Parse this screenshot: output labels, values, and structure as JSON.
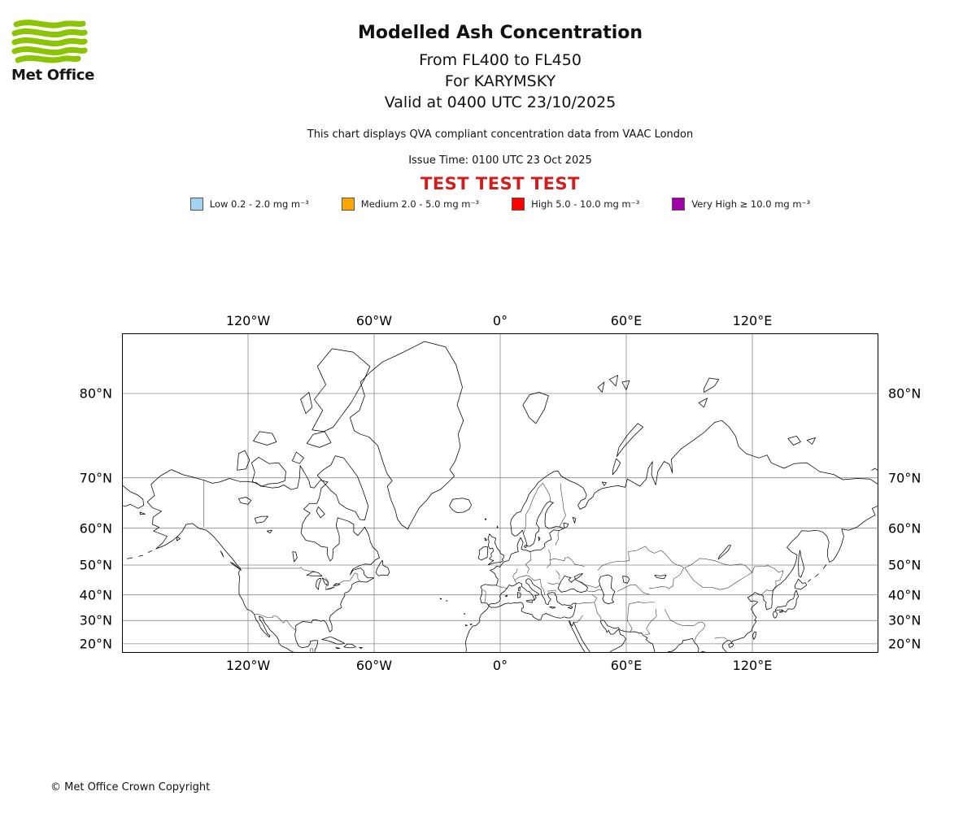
{
  "header": {
    "logo_text": "Met Office",
    "title": "Modelled Ash Concentration",
    "subtitle1": "From FL400 to FL450",
    "subtitle2": "For KARYMSKY",
    "subtitle3": "Valid at 0400 UTC 23/10/2025",
    "description": "This chart displays QVA compliant concentration data from VAAC London",
    "issue_time": "Issue Time: 0100 UTC 23 Oct 2025",
    "test_banner": "TEST TEST TEST"
  },
  "legend": {
    "items": [
      {
        "key": "low",
        "label": "Low 0.2 - 2.0 mg m⁻³",
        "color": "#a2d4f2"
      },
      {
        "key": "medium",
        "label": "Medium 2.0 - 5.0 mg m⁻³",
        "color": "#ffa500"
      },
      {
        "key": "high",
        "label": "High 5.0 - 10.0 mg m⁻³",
        "color": "#ff0000"
      },
      {
        "key": "very-high",
        "label": "Very High ≥ 10.0 mg m⁻³",
        "color": "#a000a8"
      }
    ]
  },
  "map": {
    "lon_range": [
      -180,
      180
    ],
    "lat_range": [
      15.6,
      84.2
    ],
    "lon_ticks": [
      {
        "label": "120°W",
        "lon": -120
      },
      {
        "label": "60°W",
        "lon": -60
      },
      {
        "label": "0°",
        "lon": 0
      },
      {
        "label": "60°E",
        "lon": 60
      },
      {
        "label": "120°E",
        "lon": 120
      }
    ],
    "lat_ticks": [
      {
        "label": "80°N",
        "lat": 80
      },
      {
        "label": "70°N",
        "lat": 70
      },
      {
        "label": "60°N",
        "lat": 60
      },
      {
        "label": "50°N",
        "lat": 50
      },
      {
        "label": "40°N",
        "lat": 40
      },
      {
        "label": "30°N",
        "lat": 30
      },
      {
        "label": "20°N",
        "lat": 20
      }
    ],
    "coastlines": [
      "-88.3,15.6 -88.2,17.4 -87.4,18.5 -87,20.2 -86.8,21.4 -88.5,21.5 -90.3,21.2 -90.6,19.8 -91.5,18.7 -94.4,18.2 -96,19.1 -97.2,21.6 -97.7,24 -97.2,26 -97.3,27.8 -96.3,28.5 -94,29.6 -91.5,29.4 -89.8,29.1 -89.2,30.3 -87.5,30.3 -85.3,29.7 -84,30.1 -82.7,28.9 -81.8,26.7 -81.1,25.2 -80.1,26 -80.1,28 -80.7,29.5 -81.3,30.6 -80.8,32 -79.2,33.1 -77.8,34.2 -75.5,35.2 -76,36.5 -75.3,38 -74,39.6 -74,40.7 -72.3,41.1 -70.9,42.3 -70.5,43.7 -68.8,44.4 -66.9,44.8 -65.8,44.6 -63.5,44.5 -60.1,45.9 -63.2,45.9 -64.8,47.1 -65,48.2 -66.5,49.1 -70,48.4 -71.5,46.9 -70.2,48.7 -67,49.8 -64.5,50.3 -61.5,50.2 -59.5,51.5 -57.5,52.2 -58.5,54 -60.5,55.1 -61.7,56.4 -62.5,58.3 -64.5,60.3 -65.3,59.7 -67.8,58.2 -69.7,59.1 -69.7,60.9 -72.2,61.6 -77.3,62.4 -78.1,60.7 -76.6,58.2 -76.6,56.1 -79.5,54.7 -79.8,52 -80.9,51.2 -82.2,52.9 -82.3,55.1 -85.1,55.3 -88.2,56.5 -92.5,57 -94.8,58.8 -94.1,61 -92.5,62.4 -90.5,63.4 -93.5,64.2 -90.8,65.4 -87.2,65.4 -86.1,66.5 -85.2,68.2 -82,69.3 -85.6,69.6 -88.5,68.3 -90.3,68.4 -91,69.5 -93.5,71 -95.2,71.9 -95.5,70 -96.5,68.3 -99.5,68 -103,68.8 -105.5,68.4 -108.5,68.3 -111.5,68.5 -114,68.6 -116,69.2 -120.5,69.4 -124,69.4 -128.9,69.9 -133.5,69.3 -137,69.1 -141,69.6 -146,70.1 -151,70.5 -156.5,71.3 -161.8,70.3 -166.2,68.9 -164.5,66.9 -168,65.7 -165.4,64.5 -161.2,63.8 -165.2,62.5 -165.5,60.9 -162.3,60.2 -165,59.3 -161.8,58.7 -158.5,58 -160.5,56.4 -163.8,54.7 -159.8,55.6 -156,56.9 -153.5,58 -151.4,59.2 -149.4,60.9 -146.4,61.1 -143.5,60 -139.8,59.5 -136.5,58 -133.8,56.3 -131.5,54.7 -129.5,53.3 -127.3,51.8 -125.2,50 -123.5,48.9 -124.6,47.5 -124,46.2 -124.3,43.4 -124.3,40.3 -122.4,37.8 -121.9,36.6 -120.6,34.6 -118.4,33.8 -117.1,32.6 -116.2,30.4 -114.9,28.8 -114,26.9 -112.1,24.8 -109.9,22.9 -109.6,23.6 -110.7,24.4 -111.8,26.5 -113,28.7 -114.5,30.6 -114.7,31.8 -113.1,31.1 -112.2,29.2 -110.6,27.5 -109.3,25.8 -108,24.8 -106.4,23.2 -105.3,21.4 -105.4,20.4 -104.3,19.1 -101.5,17.9 -100,16.9 -97.7,15.9 -95.5,15.7 -94.2,15.6",
      "-59.2,47.6 -58.5,49 -57,50.7 -56,51.4 -55.8,49.9 -54.5,49.5 -53.5,49.2 -52.7,47.7 -53.6,46.7 -55.9,46.9 -57.9,46.6 -59.2,47.6",
      "-84.9,21.9 -83,22.5 -80.8,23.1 -78.6,22.3 -75.7,21 -74.1,20.2 -75.5,19.9 -77.7,19.9 -80,20.7 -82.5,21.5 -84.9,21.9",
      "-74.4,18.6 -72.7,19.9 -70.6,19.8 -68.7,18.6 -70.2,18.2 -72.1,18.2 -74.4,18.6",
      "-78.3,18.3 -76.3,18 -77.3,17.8 -78.3,18.3",
      "-67.2,18.4 -65.6,18.3 -66.2,17.9 -67.2,18.4",
      "-64.5,61.9 -66.8,62 -68.9,63.7 -73.2,64.4 -76.6,65.4 -78,67 -80.8,67.9 -84.6,69.5 -87,70.4 -84.5,71.2 -80.5,72 -78.5,73.3 -74.5,73 -71,71.6 -67.9,70.2 -65.2,67.7 -62.8,64.8 -64.5,61.9",
      "-118,69.4 -113.5,68.6 -110,69 -106,69.1 -102.5,69.5 -102,71 -105.5,72.3 -110,72.2 -115,73.1 -118.3,72.3 -116.8,70.9 -118,69.4",
      "-125.2,71.2 -121,71.4 -119.3,72.7 -121.5,74 -124.5,73.6 -125.2,71.2",
      "-89.5,76.5 -84,76.3 -79.5,76.8 -75.5,78 -71,79.2 -65,81 -62,82 -70,82.9 -80,83.1 -87,82 -83,80.7 -88.5,79.5 -84.5,78.5 -89.5,76.5",
      "-92,74.9 -86,74.4 -80.5,75 -83.5,76.3 -89,76 -92,74.9",
      "-117.5,75.2 -111,74.7 -106.5,75.1 -108.5,76.1 -114.5,76.3 -117.5,75.2",
      "-99,72.6 -95.5,72.2 -93.5,73 -97,73.8 -99,72.6",
      "-92.5,78.2 -89.5,78.8 -91,80.1 -95,79.5 -92.5,78.2",
      "-86.5,64.7 -83.5,63.2 -85.5,62.4 -87.5,63.8 -86.5,64.7",
      "-43.9,59.8 -46.8,60.7 -48.9,62.1 -50.1,64.2 -52.1,66.2 -53.7,68.6 -51.4,69.5 -53.9,70.7 -55.8,72.4 -58.2,74.6 -62.5,75.7 -66.5,76 -69.5,76.4 -71.5,77.8 -67,78.5 -64.5,79.8 -66.5,80.9 -62,81.6 -56,82.3 -46,82.9 -36,83.5 -26,83.2 -21,82.1 -18,80.5 -20.5,79 -17.5,77.5 -20,76 -19,74.5 -21.5,72.5 -24,71.3 -21.8,70.3 -25.5,69 -28.5,68 -32.5,67.3 -35,66 -38.5,64.5 -41,62.5 -43,60.8 -43.9,59.8",
      "-22.6,66.2 -18,66.4 -15,66.1 -13.7,65.1 -14.8,64.2 -17.5,63.6 -20.5,63.5 -22.5,64 -24.2,64.9 -22.6,66.2",
      "10.8,79 14,79.9 18.5,80.1 23,79.8 21,78.6 17,77.2 13.8,77.8 10.8,79",
      "46.5,80.5 49.5,80.9 48.5,80.1 46.5,80.5",
      "52,81.1 56,81.4 55,80.6 52,81.1",
      "58,80.9 61.5,81 60,80.3 58,80.9",
      "53.5,70.5 55.5,71.3 57.2,72.3 55.2,72.9 53.8,71.5 53.5,70.5",
      "55.5,73.2 59,74.5 64,75.9 68,76.8 65.5,77.2 60.5,75.9 56.5,74.4 55.5,73.2",
      "94.5,79.2 98.5,79.6 97,78.8 94.5,79.2",
      "97,80.1 102,80.6 104,81.1 99.5,81.2 97,80.4 97,80.1",
      "137,75.5 141,75.8 143,75.1 139.5,74.7 137,75.5",
      "146,75.3 150,75.6 148.5,74.8 146,75.3",
      "176.8,71.2 178.5,71.5 179.9,71.1",
      "-5.6,36.1 -6.3,36.9 -8.9,37 -9.5,38.7 -8.8,40.2 -8.7,41.9 -9.3,43 -7.3,43.7 -4.5,43.4 -1.8,43.4 -1.2,44.7 -1.1,45.6 -2.1,46.3 -2.5,47.3 -4.8,48.4 -3,48.8 -1.6,49.7 -0.2,49.4 0.2,49.7 1.6,50.9 2.6,51.1 4.1,51.4 5.3,53.3 7.2,53.7 8.6,53.9 8.1,55.6 8.6,56.5 9.7,57.7 10.9,56.4 10,54.7 11.1,54.4 12.6,54.3 14.3,53.9 16.4,54.3 18.8,54.4 19.6,54.5 21.2,55.3 21.1,56.1 22.6,56.8 24.4,57.2 23.5,58.8 25.5,59.6 28,59.4 30.2,59.9 28.5,60.3 26.5,60.4 23.2,59.9 21.4,60.5 21.3,61.5 21.5,63.2 22.5,64.2 24.5,65.3 25.3,65.5 23.5,65.8 22.3,65.5 21,64.8 19.5,63.6 17.9,62.3 17.2,61 18.6,60.1 18.4,59.3 17,58.7 16.6,57.3 16,56.2 14.2,55.4 12.9,55.4 12.5,56.3 11.9,57.4 11.2,58.4 10.6,59.5 9.6,59 8,58.2 6.8,58.1 5.5,58.7 5.3,59.7 4.9,61.2 5.3,62 6.3,62.7 8,63.5 9.8,63.7 11,64.9 12.5,65.9 13.5,67 15,67.8 16.5,68.4 18,69.2 20.5,69.9 23,70.5 25.5,71 27.5,71.1 29,70.3 31,69.9 33.1,69.5 36,69.1 39.5,68.3 41.1,67 40.4,66.3 38.5,66 37,65 38,64.2 40.5,64.7 42,66 44.2,66.7 44.8,67.3 46.5,67.8 48.5,68.2 52.5,68.5 56,68.7 59.5,68.4 60.5,69.8 66.5,68.6 69.5,69.8 70.5,71.5 72.5,72.5 72,70.5 74,68.8 75,71 78,72.5 80.5,72.1 82,70.8 81.5,72.8 86,74.2 93,75.5 97,76.2 102,77.3 105.5,77.5 109,76.8 112,75.8 113.5,74.5 117,73.6 123,73 127,73.4 129,72.3 135,71.5 140,72.2 146,72.3 152,71 159,70.5 163,69.7 170,69.9 176,69.8 179.9,68.9",
      "-180,68.8 -176,67.6 -172.5,67 -170,66.2 -169.7,65 -172.3,64.4 -176,65.2 -178.5,64.8 -180,65",
      "179.9,64.9 177,64.4 178.5,63 174,61.8 170,60.3 166,59.5 162.5,59.8 163.5,58 162.5,56 161.5,54.5 160,52.8 158.5,51.5 156.7,50.9 155.8,52.5 155.9,54.5 156.5,56.5 155.5,58 153.5,59.1 150.5,59.5 147,59.3 143.5,59.4 141.5,58 138.5,56.5 136.5,55.1 138.8,53.8 141.3,53 140.8,51 139.5,49 138,47.5 135.5,45.3 133.5,44 131.9,43.2 130.6,42.3 129.8,41.5 129.6,40.1 129.3,38.5 129.4,36.9 129.1,35.1 126.8,34.4 126.3,35.8 126.6,37.2 125.4,38 125.3,39.5 124.4,39.9 122.2,40.5 121.2,40.9 120.3,40.1 117.8,39 119.2,37.6 120.9,37.8 122.6,37.4 121.9,36.8 119.8,35.4 119.5,34.5 120.5,33 121.2,32 121.9,31.3 121.1,30.2 121.9,29.7 120.2,27.3 119.6,25.7 117.5,24.4 116,22.8 114.3,22.4 113.6,22.1 111.9,21.6 110.5,21.2 110.2,20.3 109.6,21.4 108.3,21.5 106.8,20.6 105.9,19.6 105.7,18.6 106.5,17.4 107.7,16.3 108.5,15.6",
      "142.7,54.3 143.2,52.5 144.7,49 143.1,46.1 142.1,46.6 141.9,50 142.1,52.5 142.7,54.3",
      "141.9,45.5 143.8,44.1 145.3,44.3 145.8,43.4 143.2,42 140.4,42.3 140.3,43.3 141.9,45.5",
      "140.9,41.6 141.5,40.5 141.9,39.3 141,38.3 140.9,36.9 140.6,35.9 139.8,34.9 138.9,34.6 137,34.7 135.9,33.4 135,33.7 133.9,34.4 132.2,34.2 131,34 130.9,34.4 132,35.4 133.5,35.5 136,35.9 136.8,37.3 138.2,38.2 139.5,38.5 140,39.6 140.1,40.6 140.9,41.6",
      "130.4,33.7 131.1,33.6 131.9,32.8 131.4,31.4 130.7,31 130.2,31.4 129.8,32.8 130.4,33.7",
      "132.8,33.4 134.6,34.1 134.3,33.4 132.8,33.4",
      "121.8,25.1 121,25.3 120.1,23.6 120.7,21.9 121.5,23.2 121.8,25.1",
      "108.7,19.5 109.3,20.1 110.7,20.1 111,19.6 110.4,18.7 109.2,18.3 108.7,19.5",
      "155.2,50.1 153.8,48.9",
      "151.5,47.2 150,46.3",
      "147.8,45.4 146.5,44.6",
      "-165.8,54.2 -167.5,53.7",
      "-170,52.9 -172,52.6",
      "-175,52.2 -177.5,51.9",
      "-153.8,57.9 -152.3,57.4 -153.9,56.9 -153.8,57.9",
      "-171.5,63.6 -168.9,63.2 -171.3,63.1 -171.5,63.6",
      "-128.4,50.8 -126,49.6 -123.3,48.4 -124.8,49.3 -127,50.5 -128.4,50.8",
      "-133.1,54.1 -131.7,52.4 -132.3,53.4 -133.1,54.1",
      "-5.7,50.1 -4.5,50.3 -3.6,50.5 -2.5,50.7 -0.8,50.8 0.3,50.9 1.4,51.3 0.8,51.7 1.6,52.1 1.7,52.9 0.2,53.4 -0.2,54.1 -1.4,54.8 -2.1,55.8 -2.6,56.3 -2.1,57.5 -3.9,57.9 -5.1,58.6 -5.8,57.4 -5.3,56.7 -5.7,55.5 -4.9,54.7 -3.6,54.9 -3.2,54.1 -4.4,53.3 -4.1,52.6 -5.2,51.9 -4.2,51.5 -3.1,51.4 -4,51 -5.7,50.1",
      "-6.1,55.3 -8,55.2 -10,54.3 -9.9,53.2 -10.4,52 -9,51.5 -7.5,51.9 -6.2,52.3 -6,53.5 -5.9,54.2 -6.1,55.3",
      "-7.2,62.2 -6.6,62.1 -7,61.9 -7.2,62.2",
      "-1.4,60.5 -1.1,60.2 -1.5,60.1 -1.4,60.5",
      "-7.4,57.6 -6.3,57.1 -7.1,56.9 -7.4,57.6",
      "11.8,55.7 12.6,55.6 12.2,55 11.4,55.3 11.8,55.7",
      "18.2,57.9 19,57.4 18.4,56.9 18.2,57.9",
      "-5.6,36.1 -4.4,36.7 -2.1,36.8 -0.3,37.6 0.2,38.8 -0.3,39.5 0.7,40.6 2.2,41.4 3.2,42.3 4.2,43.5 5.8,43.1 7.5,43.7 8.9,44.4 10.2,43.9 10.3,42.9 11.8,42.1 12.7,41.4 13.9,41.2 14.3,40.8 15.3,40 15.9,39 16.1,38.4 15.7,38 16.1,37.9 16.6,38.4 17.1,39 16.5,39.8 18,39.9 18.4,40.3 17.3,40.9 16,41.5 15.2,41.9 14.5,42.4 13.6,43.6 12.4,44.2 12.3,45.1 13.1,45.6 13.8,45.6 14.9,44.9 15.5,43.9 16.5,43.3 17.5,42.9 18.5,42.4 19.4,41.9 19.5,40.9 19.9,39.8 20.8,38.9 21.1,38.3 21.5,37.5 21.7,36.8 22.4,36.4 23,36.5 23.2,37.5 23.7,37.9 24.1,38.4 23.3,38.9 23,39.4 22.6,40.2 22.9,40.6 23.7,40.7 24.5,40.9 26,40.7 26.2,40.1",
      "29.1,41 31.3,41.3 33.4,42 35.2,42.1 36.5,41.3 38.5,40.9 41,41.4 41.6,42.6 40.2,43.6 38.8,44.4 37.4,44.7 36.6,45.1 35.4,45.4 33.8,44.4 32.5,45.3 33.7,46 32,46.2 31.6,46.3 30.7,46.6 29.7,45.5 28.8,44.7 28.1,43.4 27.5,42.3 28.3,41.6 29.1,41",
      "35.3,46.3 36.3,46.6 37.6,47.1 39.3,47.3 38.2,46.6 36.9,45.9 35.9,45.5 35.3,46.3",
      "26.2,39.9 26.9,39.3 26.8,38.3 27.3,37.4 28.3,36.8 29.5,36.2 30.5,36.3 32,36.1 33.9,36.2 34.6,36.8 36,36.9 35.9,36 35.6,34.8 35.2,33.3 34.6,31.9 33.4,31.1 31.9,31.1 30.4,31.5 28.8,31 27,31.2 25.2,31.7 23.1,32.4 21.7,32.9 20.1,32.2 19.3,30.4 17.9,30.4 15.8,31.4 15.2,32.4 13.1,32.9 11.5,33.2 10.1,33.8 10.2,34.8 11.1,35.2 10.8,36.5 10.3,37.1 9.2,37.2 8,36.9 6.5,37.1 5.3,36.8 3.8,36.9 2.1,36.6 0,35.8 -1.5,35.3 -2.9,35.3 -4.3,35.2 -5.3,35.9 -6,34.8 -7.5,33.6 -9.2,32.3 -9.8,31 -9.7,29.5 -10.5,28.8 -11.5,28 -13,27.7 -14.5,26 -15.2,24.5 -16,22.5 -16.5,20.8 -16.3,19 -16.1,17.2 -16.4,15.9 -16.4,15.6",
      "8.2,40.9 9.7,40.6 9.6,39.2 8.4,38.9 8.2,40.9",
      "8.6,42.3 9.5,42.9 9.3,41.4 8.7,41.5 8.6,42.3",
      "12.4,37.8 15.1,38.2 15.3,37.1 12.9,37.5 12.4,37.8",
      "23.5,35.5 26.3,35.3 25,34.9 23.5,35.5",
      "32.3,35.2 34.5,35.6 33.9,34.7 32.3,35.2",
      "2.4,39.6 3.4,39.8 3,39.3 2.4,39.6",
      "-16.6,28.2 -15.6,28 -16.4,27.8 -16.6,28.2",
      "-14.3,28.4 -13.5,28.6 -13.9,28.2 -14.3,28.4",
      "-17.2,32.9 -16.7,32.7 -17.1,32.6 -17.2,32.9",
      "-28.6,38.7 -27.9,38.6 -28.4,38.4 -28.6,38.7",
      "-25.7,37.9 -25.1,37.8 -25.6,37.7 -25.7,37.9",
      "32.6,29.9 33.6,27.8 35.6,24.3 37.3,21 39.2,17.8 40.8,15.6",
      "33.1,29.9 33.7,28.3 34.3,27.8 34.7,28.5 34.9,29.4",
      "34.9,29.4 35.8,27.5 37.5,24.5 39,21.5 41.1,18.5 42.8,16.2 43.2,15.6",
      "51.5,15.6 53,16.8 55.3,17.9 57.8,19.1 58.8,20.5 59.8,22.2 58.6,23.6 57.2,24.1 56.4,26.4 55.2,25.4 54,24.3 52.5,24.2 51.6,25.9 50.8,25 50.2,26.4 49,27.5 48,29 47.7,29.9 48.8,30.2 49.6,29.8 51,27.9 52.6,27.3 54.5,26.7 56.2,27.1 57.3,25.9 59.5,25.4 61.6,25.2 64.1,25.3 66.5,24.6 67.2,24.8 68.2,23.6 70.1,22.6 69.4,21.9 70.9,20.7 72.6,19.9 72.9,18.8 73.5,16.4 73.8,15.6",
      "80.3,15.6 80.1,16.6 81.3,16.3 82.4,17 83.6,17.8 85.1,19.5 86.6,20.2 87.1,21.7 88.2,21.6 89.6,21.9 91.5,22.4 92.3,20.8 93.6,19.5 94.5,17.8 94.2,16.2 95.2,15.9 96.3,16.6 97.3,16.3 97.7,15.6",
      "49.2,46.6 51.5,46.9 53.2,46.2 53,44.5 52.8,42.5 54.5,41.2 53.8,39.8 53.2,38.2 54,37.3 51.5,36.6 49.5,37.3 48.7,38.5 49.4,40 48.5,41.7 47.5,43.5 47,45 47.8,46.3 49.2,46.6",
      "58.3,46.5 60.5,46.3 61.5,45.5 60.5,44.1 58.7,44.5 58.3,46.5",
      "73.5,46.8 76,46.6 79,46.8 78,45.6 74.5,46 73.5,46.8",
      "103.8,51.7 106,52.9 108.5,54.2 109.8,55.6 108.8,55.7 106.3,54 104.3,52.6 103.8,51.7",
      "30.2,61.2 32.4,61 32,60.4 30.5,60 30.2,61.2",
      "34.5,62.5 35.9,62.2 35.4,61.2 34.5,62.5",
      "-92.1,46.8 -89.5,46.6 -87,46.6 -84.8,46.5 -86.5,47.6 -89.2,47.9 -92.1,46.8",
      "-87.8,43 -87.3,45 -86,45.8 -85.2,45.7 -86.3,43.7 -86.5,41.9 -87.8,43",
      "-84.7,45.9 -82.6,45 -81.7,44.5 -82,43.3 -83.4,43.9 -84.7,45.9",
      "-83.2,41.9 -81.2,42.3 -78.9,42.8 -80.8,42.2 -83.2,41.9",
      "-79.4,43.3 -77.6,43.3 -76.2,43.7 -78.1,44 -79.4,43.3",
      "-98.8,53.9 -97.3,53.8 -96.6,52.2 -98.1,51 -98.8,53.9",
      "-124.5,66.3 -121,66.6 -118.5,66 -120,65.2 -123.5,65.5 -124.5,66.3",
      "-116.8,62.3 -113.5,62.7 -110.5,62.7 -112.5,61.5 -116,61.2 -116.8,62.3",
      "-111,59.3 -108.6,59.5 -109.6,58.8 -111,59.3",
      "48.5,69.3 50.5,69.2 49.5,68.7 48.5,69.3"
    ],
    "borders": [
      "-141,69.6 -141,60.3",
      "-123,49 -95.2,49 -94.8,49.3 -93.8,48.6 -92.3,48.3 -89.5,48 -88.4,48.2",
      "-83.2,46 -82.4,45.3 -82.4,43.9 -82.9,42.9 -83.1,42.3",
      "-79.2,43.4 -76.4,44.1 -75,44.8 -71.5,45 -69.2,47.5 -67.8,47.1 -67.8,45.7 -66.9,44.8",
      "-117.1,32.6 -114.8,32.5 -111,31.3 -108.2,31.3 -108.2,31.8 -106.5,31.8 -104.9,30.6 -103.1,29 -102.4,29.9 -101.4,29.8 -99.5,27.5 -97.2,25.9",
      "-92.2,15.6 -92.2,16.1 -90.4,16.1 -90.4,17.8 -89.1,17.8 -89.1,15.7",
      "11.4,59 12.3,61 12.1,63 14,64.5 15.5,66.2 18,68.2 20.2,69.1",
      "24,65.8 23.5,67 22,68.1 20.5,69 20.2,69.1",
      "28.2,60.4 29.8,61.8 31.2,62.9 30.2,64.2 29.8,65.7 29,67.7 28.9,69.1",
      "28,59.4 27.4,58.3 27.8,57.3 26.5,56.2 26.6,55.7",
      "14.3,53.9 14.7,51.6 12.1,50.2 13.8,48.8 12.9,47.5",
      "8.2,48.9 7.6,47.6 6.8,47.3 6,46.4 7,45.1 7.7,44.1",
      "-1.8,43.3 0.7,42.7 3.2,42.4",
      "-8.2,41.9 -6.9,41.1 -7,38.8 -7.4,37.2",
      "22.9,54.4 23.5,53.9 23.9,52.8 23.6,51.5 24,50.4 22.2,49.2",
      "23.6,51.5 25.8,51.9 28.1,51.6 30.6,51.3 30.8,52.1",
      "30.8,52.1 32.5,52.3 34.4,51.3 35.3,50.3 38,49.9 40.1,49.6",
      "26.6,48.3 28.2,46.9 28.2,45.5",
      "22.7,44.2 25,43.7 27.3,44.1 28.4,43.7",
      "7,45.1 8.5,46 10,46.3 12.5,46.7 13.7,46.5",
      "13.7,46.5 15.2,45.6 16.3,45 19,45.5 19.3,44.3 19.5,42.9 20.5,42 21,40.9 21,40",
      "22.5,41.3 24,41.5 26,41.7 26.6,41.3",
      "37.4,44.7 39.8,43.6 42.7,43.2 45.7,42.5 47.5,43.5",
      "41.5,41.4 43.5,41.1 45.2,41.3 46.5,41.8 48.6,41.8",
      "35.9,36.8 37.5,36.7 40,37.1 42.5,37.1 44.8,37.2",
      "44.8,37.2 46,38.9 44.4,39.7 43.7,40.1",
      "44.8,37.2 45.5,35.5 46.2,33 47.5,31.8 48,30.5",
      "34.9,29.4 36.5,29.2 38,30.5 39.2,32.1",
      "61.3,36.6 60.9,34 60.6,29.8 61.8,28.2 62.8,26.6 61.7,25.1",
      "74,34.6 74.4,31.7 71.9,29.8 70.4,28 69.6,26.7 71.1,24.4 68.8,23.9",
      "61.3,36.6 64,37.1 66,37.4 68.2,37 71,37.2 73.5,37.2",
      "55.9,41.3 58.5,42.3 61.9,43.5 64.4,43.6 66.5,42 68.3,40.7 70.9,40.2",
      "70.9,42.3 73.5,42.5 76.5,42.9 79,42.8 80.2,42.2",
      "46.5,48.4 48.5,49.8 51.8,50.6 54.5,51 58,51.1 61.4,51.3 61,53.9 65.2,54.3 69.1,55.4 71,54.1 73.4,53.5 76.6,54.3 79,53 82,50.8 84.3,50 86.5,49.6 87.3,49.1",
      "87.3,49.1 85.7,47 82.5,45.5 82.3,43.2 80.2,42.2",
      "87.8,49.2 90.7,50 95,52 98,51.8 102.2,51.3 106.2,50.3 109.5,49.9 114.3,50.3 116.7,49.8 119.9,47.7 117.4,46.6 113.6,45 108.2,42.4 104.5,41.9 100.8,42.7 96.4,42.7 92,45.1 90.1,46.9 87.8,49.2",
      "119.9,47.7 121,49.5 125,49.6 127.5,49.8 130.5,48.9 132.5,47.7 134.7,48.3 134.3,47 133.1,45.1 131.1,44.9 131.3,43.4 130.6,42.4",
      "130.6,42.4 129.7,41.6 128.2,41.4 126.9,41.8 124.4,40.1",
      "78.4,34.6 79.5,32.5 81,30.2 84,28.8 86.5,28 88.1,27.9 89.5,28 92,27.8 94.6,29.3 96.1,29.4 97.5,28.2",
      "97.5,28.2 97,26.8 94.8,25 93.2,23 92.6,21.3",
      "102.1,22.4 104.8,22.8 106.7,22.8 108.1,21.5"
    ]
  },
  "footer": {
    "copyright": "© Met Office Crown Copyright"
  },
  "colors": {
    "test_banner": "#d01f1f",
    "brand_green": "#8bc400",
    "grid": "#8a8a8a",
    "coastline": "#000000",
    "border": "#2b2b2b",
    "frame": "#000000"
  }
}
